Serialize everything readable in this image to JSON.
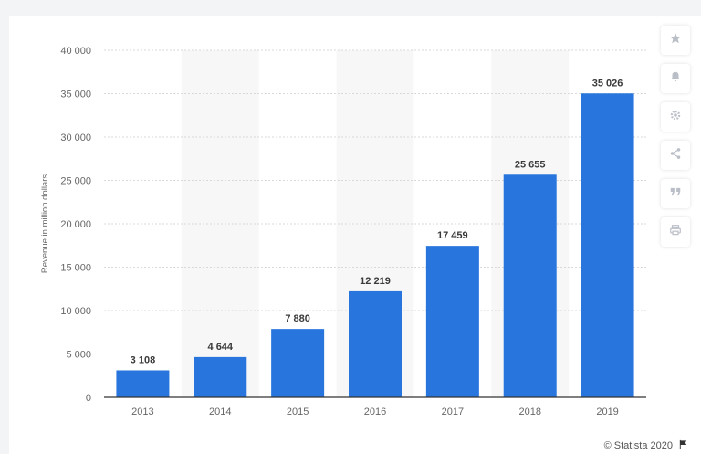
{
  "chart_data": {
    "type": "bar",
    "categories": [
      "2013",
      "2014",
      "2015",
      "2016",
      "2017",
      "2018",
      "2019"
    ],
    "values": [
      3108,
      4644,
      7880,
      12219,
      17459,
      25655,
      35026
    ],
    "value_labels": [
      "3 108",
      "4 644",
      "7 880",
      "12 219",
      "17 459",
      "25 655",
      "35 026"
    ],
    "ylabel": "Revenue in million dollars",
    "xlabel": "",
    "ylim": [
      0,
      40000
    ],
    "yticks": [
      0,
      5000,
      10000,
      15000,
      20000,
      25000,
      30000,
      35000,
      40000
    ],
    "ytick_labels": [
      "0",
      "5 000",
      "10 000",
      "15 000",
      "20 000",
      "25 000",
      "30 000",
      "35 000",
      "40 000"
    ],
    "grid": true,
    "bar_color": "#2876dd",
    "alt_band_color": "#f7f7f7"
  },
  "toolbar": {
    "buttons": [
      {
        "name": "star-icon"
      },
      {
        "name": "bell-icon"
      },
      {
        "name": "gear-icon"
      },
      {
        "name": "share-icon"
      },
      {
        "name": "quote-icon"
      },
      {
        "name": "print-icon"
      }
    ]
  },
  "footer": {
    "credit": "© Statista 2020",
    "flag_icon": "flag-icon"
  }
}
